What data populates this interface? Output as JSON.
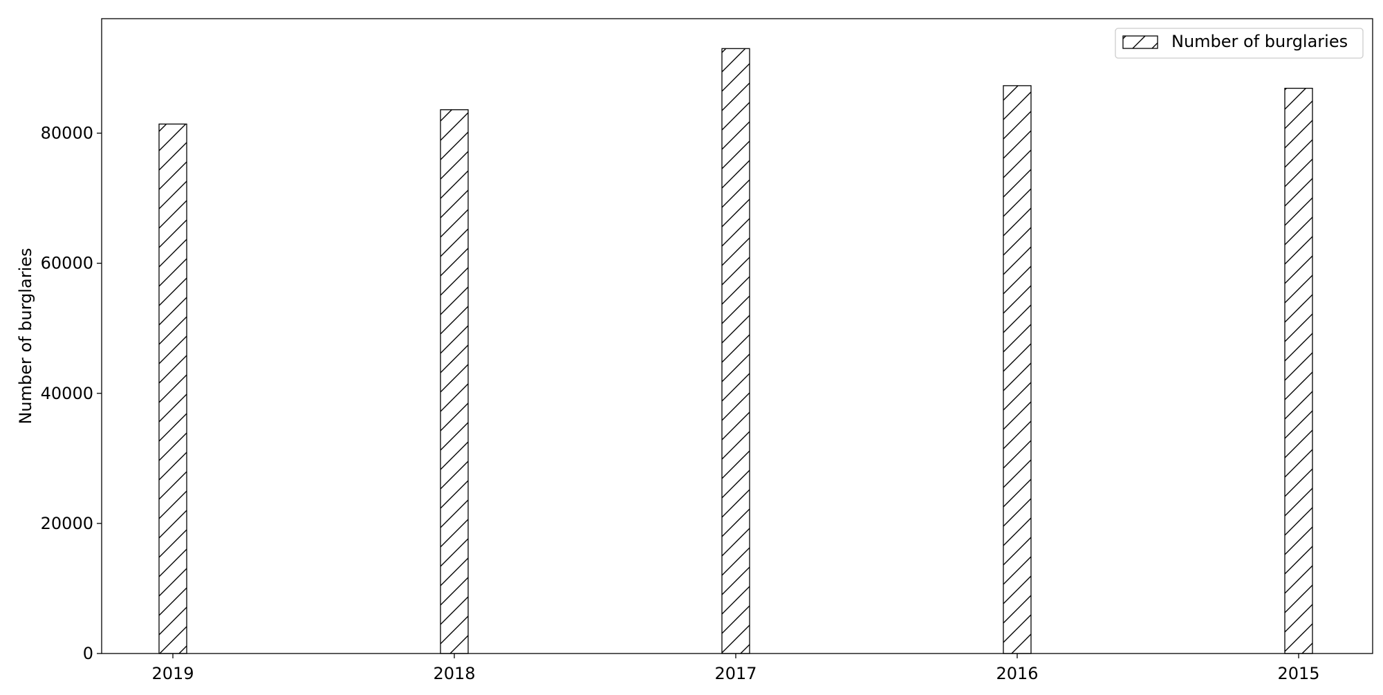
{
  "chart_data": {
    "type": "bar",
    "title": "",
    "xlabel": "",
    "ylabel": "Number of burglaries",
    "categories": [
      "2019",
      "2018",
      "2017",
      "2016",
      "2015"
    ],
    "series": [
      {
        "name": "Number of burglaries",
        "values": [
          81400,
          83600,
          93000,
          87300,
          86900
        ],
        "hatch": "/"
      }
    ],
    "ylim": [
      0,
      97600
    ],
    "yticks": [
      0,
      20000,
      40000,
      60000,
      80000
    ],
    "grid": false,
    "legend_position": "top-right",
    "colors": {
      "bar_fill": "#ffffff",
      "edge": "#000000",
      "background": "#ffffff"
    }
  }
}
